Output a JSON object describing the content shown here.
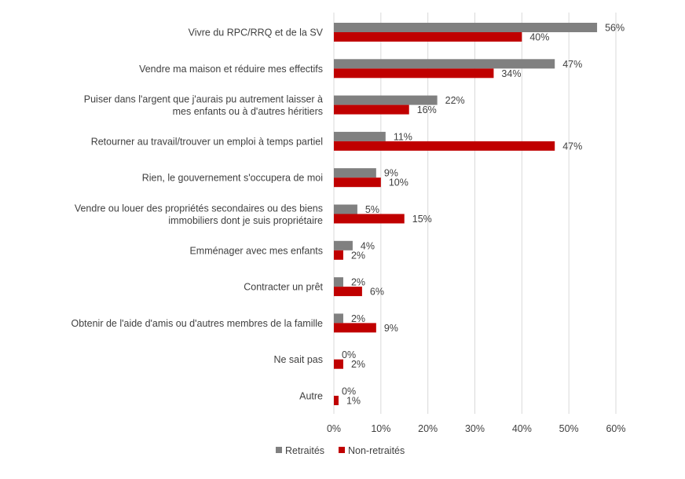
{
  "chart_data": {
    "type": "bar",
    "orientation": "horizontal",
    "categories": [
      "Vivre du RPC/RRQ et de la SV",
      "Vendre ma maison et réduire mes effectifs",
      "Puiser dans l'argent que j'aurais pu autrement laisser à mes enfants ou à d'autres héritiers",
      "Retourner au travail/trouver un emploi à temps partiel",
      "Rien, le gouvernement s'occupera de moi",
      "Vendre ou louer des propriétés secondaires ou des biens immobiliers dont je suis propriétaire",
      "Emménager avec mes enfants",
      "Contracter un prêt",
      "Obtenir de l'aide d'amis ou d'autres membres de la famille",
      "Ne sait pas",
      "Autre"
    ],
    "category_lines": [
      [
        "Vivre du RPC/RRQ et de la SV"
      ],
      [
        "Vendre ma maison et réduire mes effectifs"
      ],
      [
        "Puiser dans l'argent que j'aurais pu autrement laisser à",
        "mes enfants ou à d'autres héritiers"
      ],
      [
        "Retourner au travail/trouver un emploi à temps partiel"
      ],
      [
        "Rien, le gouvernement s'occupera de moi"
      ],
      [
        "Vendre ou louer des propriétés secondaires ou des biens",
        "immobiliers dont je suis propriétaire"
      ],
      [
        "Emménager avec mes enfants"
      ],
      [
        "Contracter un prêt"
      ],
      [
        "Obtenir de l'aide d'amis ou d'autres membres de la famille"
      ],
      [
        "Ne sait pas"
      ],
      [
        "Autre"
      ]
    ],
    "series": [
      {
        "name": "Retraités",
        "color": "#808080",
        "values": [
          56,
          47,
          22,
          11,
          9,
          5,
          4,
          2,
          2,
          0,
          0
        ]
      },
      {
        "name": "Non-retraités",
        "color": "#c00000",
        "values": [
          40,
          34,
          16,
          47,
          10,
          15,
          2,
          6,
          9,
          2,
          1
        ]
      }
    ],
    "value_suffix": "%",
    "xlim": [
      0,
      60
    ],
    "x_ticks": [
      0,
      10,
      20,
      30,
      40,
      50,
      60
    ],
    "x_tick_labels": [
      "0%",
      "10%",
      "20%",
      "30%",
      "40%",
      "50%",
      "60%"
    ],
    "grid": "vertical",
    "gridline_color": "#d9d9d9",
    "legend": "bottom-center"
  }
}
